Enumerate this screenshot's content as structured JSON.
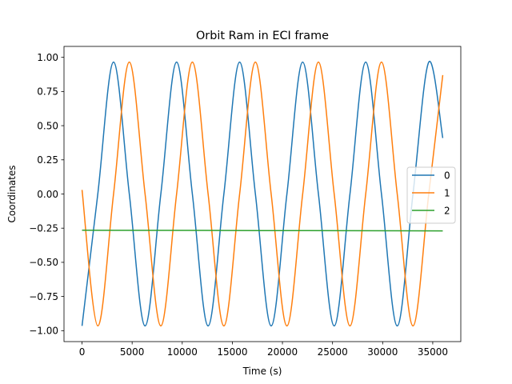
{
  "chart_data": {
    "type": "line",
    "title": "Orbit Ram in ECI frame",
    "xlabel": "Time (s)",
    "ylabel": "Coordinates",
    "xlim": [
      -1800,
      37800
    ],
    "ylim": [
      -1.08,
      1.08
    ],
    "x_ticks": [
      0,
      5000,
      10000,
      15000,
      20000,
      25000,
      30000,
      35000
    ],
    "y_ticks": [
      -1.0,
      -0.75,
      -0.5,
      -0.25,
      0.0,
      0.25,
      0.5,
      0.75,
      1.0
    ],
    "y_tick_labels": [
      "−1.00",
      "−0.75",
      "−0.50",
      "−0.25",
      "0.00",
      "0.25",
      "0.50",
      "0.75",
      "1.00"
    ],
    "x_tick_labels": [
      "0",
      "5000",
      "10000",
      "15000",
      "20000",
      "25000",
      "30000",
      "35000"
    ],
    "grid": false,
    "legend_position": "center-right",
    "series": [
      {
        "name": "0",
        "color": "#1f77b4",
        "x": [
          0,
          1573,
          3146,
          4718,
          6291,
          7864,
          9437,
          11010,
          12582,
          14155,
          15728,
          17301,
          18874,
          20446,
          22019,
          23592,
          25165,
          26738,
          28310,
          29883,
          31456,
          33029,
          34602,
          36000
        ],
        "y": [
          -0.965,
          0.0,
          0.965,
          0.0,
          -0.965,
          0.0,
          0.965,
          0.0,
          -0.965,
          0.0,
          0.965,
          0.0,
          -0.965,
          0.0,
          0.965,
          0.0,
          -0.965,
          0.0,
          0.965,
          0.0,
          -0.965,
          0.0,
          0.965,
          0.41
        ]
      },
      {
        "name": "1",
        "color": "#ff7f0e",
        "x": [
          0,
          1573,
          3146,
          4718,
          6291,
          7864,
          9437,
          11010,
          12582,
          14155,
          15728,
          17301,
          18874,
          20446,
          22019,
          23592,
          25165,
          26738,
          28310,
          29883,
          31456,
          33029,
          34602,
          36000
        ],
        "y": [
          0.03,
          -0.965,
          0.0,
          0.965,
          0.0,
          -0.965,
          0.0,
          0.965,
          0.0,
          -0.965,
          0.0,
          0.965,
          0.0,
          -0.965,
          0.0,
          0.965,
          0.0,
          -0.965,
          0.0,
          0.965,
          0.0,
          -0.965,
          0.0,
          0.87
        ]
      },
      {
        "name": "2",
        "color": "#2ca02c",
        "x": [
          0,
          36000
        ],
        "y": [
          -0.265,
          -0.27
        ]
      }
    ]
  }
}
